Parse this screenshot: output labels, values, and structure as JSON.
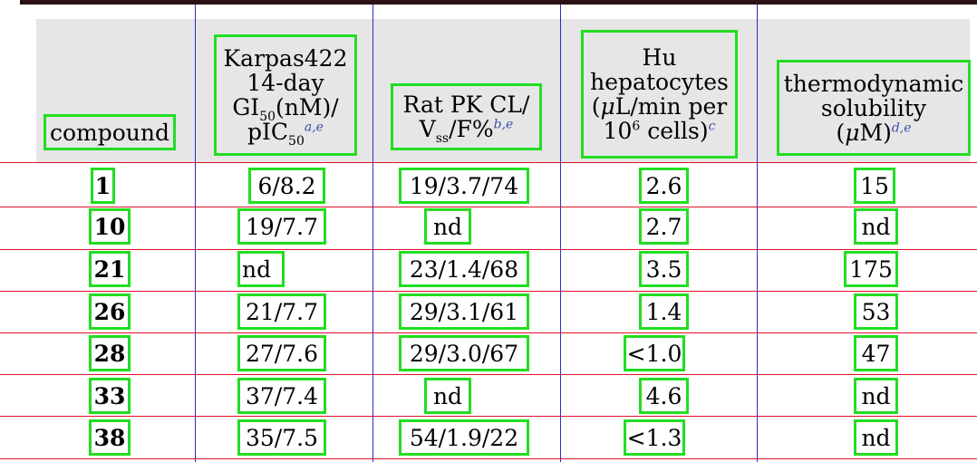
{
  "table": {
    "headers": {
      "compound": "compound",
      "karpas_line1": "Karpas422",
      "karpas_line2": "14-day",
      "karpas_gi": "GI",
      "karpas_gi_sub": "50",
      "karpas_gi_rest": "(nM)/",
      "karpas_pic": "pIC",
      "karpas_pic_sub": "50",
      "karpas_note": "a,e",
      "ratpk_line1": "Rat PK CL/",
      "ratpk_v": "V",
      "ratpk_v_sub": "ss",
      "ratpk_rest": "/F%",
      "ratpk_note": "b,e",
      "hu_line1": "Hu",
      "hu_line2": "hepatocytes",
      "hu_open": "(",
      "hu_mu": "μ",
      "hu_line3": "L/min per",
      "hu_ten": "10",
      "hu_exp": "6",
      "hu_cells": " cells)",
      "hu_note": "c",
      "sol_line1": "thermodynamic",
      "sol_line2": "solubility",
      "sol_open": "(",
      "sol_mu": "μ",
      "sol_unit": "M)",
      "sol_note": "d,e"
    },
    "rows": [
      {
        "compound": "1",
        "karpas": "6/8.2",
        "ratpk": "19/3.7/74",
        "hu": "2.6",
        "sol": "15"
      },
      {
        "compound": "10",
        "karpas": "19/7.7",
        "ratpk": "nd",
        "hu": "2.7",
        "sol": "nd"
      },
      {
        "compound": "21",
        "karpas": "nd",
        "ratpk": "23/1.4/68",
        "hu": "3.5",
        "sol": "175"
      },
      {
        "compound": "26",
        "karpas": "21/7.7",
        "ratpk": "29/3.1/61",
        "hu": "1.4",
        "sol": "53"
      },
      {
        "compound": "28",
        "karpas": "27/7.6",
        "ratpk": "29/3.0/67",
        "hu": "<1.0",
        "sol": "47"
      },
      {
        "compound": "33",
        "karpas": "37/7.4",
        "ratpk": "nd",
        "hu": "4.6",
        "sol": "nd"
      },
      {
        "compound": "38",
        "karpas": "35/7.5",
        "ratpk": "54/1.9/22",
        "hu": "<1.3",
        "sol": "nd"
      }
    ]
  }
}
